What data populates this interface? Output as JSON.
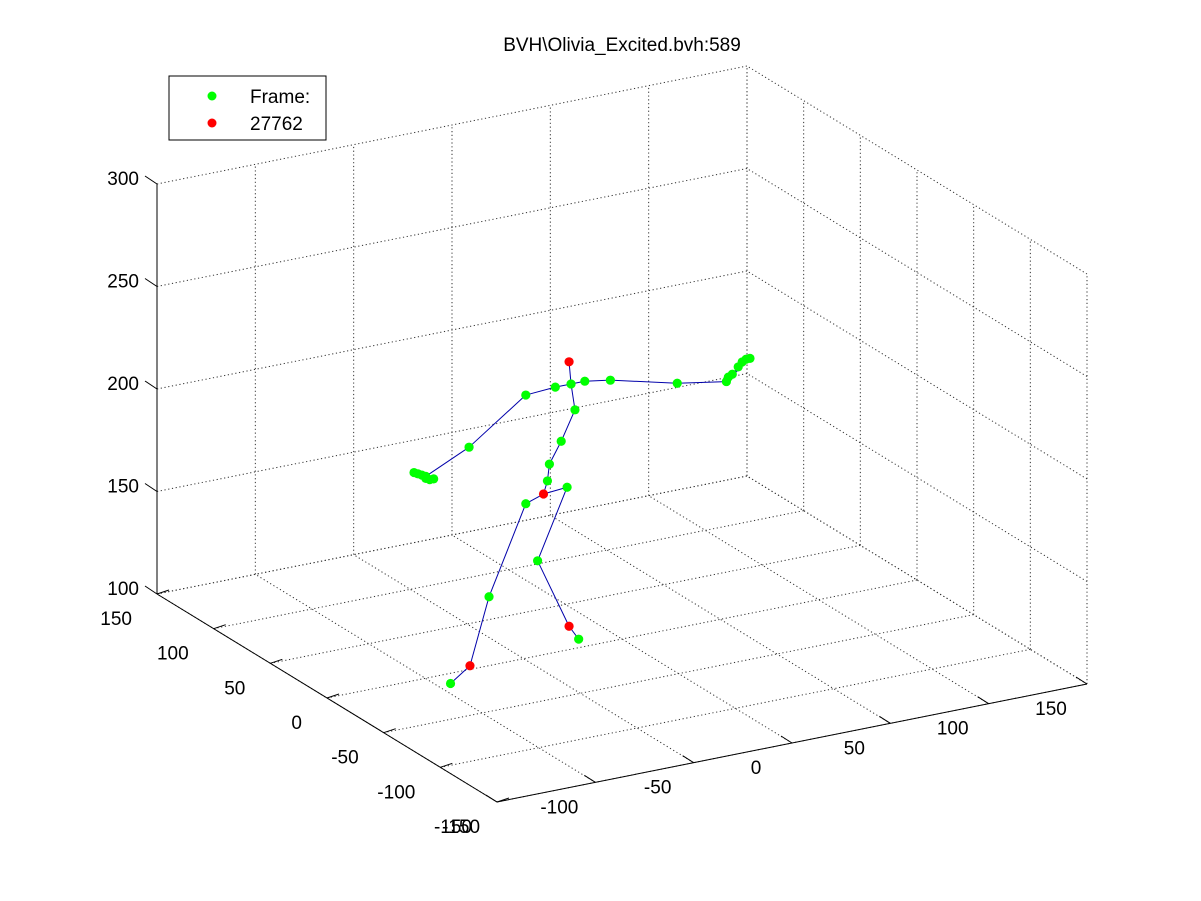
{
  "chart_data": {
    "type": "scatter",
    "title": "BVH\\Olivia_Excited.bvh:589",
    "xlabel": "",
    "ylabel": "",
    "zlabel": "",
    "grid": true,
    "legend_position": "top-left",
    "x_ticks": [
      "-150",
      "-100",
      "-50",
      "0",
      "50",
      "100",
      "150"
    ],
    "y_ticks": [
      "-150",
      "-100",
      "-50",
      "0",
      "50",
      "100",
      "150"
    ],
    "z_ticks": [
      "100",
      "150",
      "200",
      "250",
      "300"
    ],
    "xlim": [
      -150,
      150
    ],
    "ylim": [
      -150,
      150
    ],
    "zlim": [
      100,
      300
    ],
    "legend": [
      {
        "label": "Frame:",
        "color": "#00ff00"
      },
      {
        "label": "27762",
        "color": "#ff0000"
      }
    ],
    "colors": {
      "joint": "#00ff00",
      "highlight": "#ff0000",
      "bone": "#0000aa"
    },
    "joints": [
      {
        "id": "head_top",
        "x": -20,
        "y": 12,
        "z": 235,
        "highlight": true
      },
      {
        "id": "neck",
        "x": -19,
        "y": 12,
        "z": 224
      },
      {
        "id": "l_clav",
        "x": -27,
        "y": 12,
        "z": 224
      },
      {
        "id": "r_clav",
        "x": -12,
        "y": 12,
        "z": 224
      },
      {
        "id": "l_shoulder",
        "x": -42,
        "y": 12,
        "z": 223
      },
      {
        "id": "l_elbow",
        "x": -72,
        "y": 10,
        "z": 204
      },
      {
        "id": "l_wrist",
        "x": -94,
        "y": 10,
        "z": 194
      },
      {
        "id": "l_h1",
        "x": -100,
        "y": 10,
        "z": 197
      },
      {
        "id": "l_h2",
        "x": -98,
        "y": 10,
        "z": 196
      },
      {
        "id": "l_h3",
        "x": -96,
        "y": 10,
        "z": 195
      },
      {
        "id": "l_h4",
        "x": -94,
        "y": 10,
        "z": 193
      },
      {
        "id": "l_h5",
        "x": -92,
        "y": 10,
        "z": 192
      },
      {
        "id": "l_h6",
        "x": -90,
        "y": 10,
        "z": 192
      },
      {
        "id": "r_shoulder",
        "x": 1,
        "y": 12,
        "z": 222
      },
      {
        "id": "r_elbow",
        "x": 35,
        "y": 12,
        "z": 214
      },
      {
        "id": "r_wrist",
        "x": 60,
        "y": 12,
        "z": 210
      },
      {
        "id": "r_h1",
        "x": 68,
        "y": 12,
        "z": 218
      },
      {
        "id": "r_h2",
        "x": 70,
        "y": 12,
        "z": 219
      },
      {
        "id": "r_h3",
        "x": 72,
        "y": 12,
        "z": 219
      },
      {
        "id": "r_h4",
        "x": 66,
        "y": 12,
        "z": 216
      },
      {
        "id": "r_h5",
        "x": 63,
        "y": 12,
        "z": 213
      },
      {
        "id": "r_h6",
        "x": 61,
        "y": 12,
        "z": 212
      },
      {
        "id": "spine3",
        "x": -17,
        "y": 12,
        "z": 211
      },
      {
        "id": "spine2",
        "x": -24,
        "y": 12,
        "z": 197
      },
      {
        "id": "spine1",
        "x": -30,
        "y": 12,
        "z": 187
      },
      {
        "id": "spine0",
        "x": -31,
        "y": 12,
        "z": 179
      },
      {
        "id": "hips",
        "x": -33,
        "y": 12,
        "z": 173,
        "highlight": true
      },
      {
        "id": "l_hip",
        "x": -42,
        "y": 12,
        "z": 170
      },
      {
        "id": "r_hip",
        "x": -21,
        "y": 12,
        "z": 174
      },
      {
        "id": "l_knee",
        "x": -63,
        "y": 8,
        "z": 130
      },
      {
        "id": "l_ankle",
        "x": -75,
        "y": 4,
        "z": 100,
        "highlight": true
      },
      {
        "id": "l_toe",
        "x": -82,
        "y": 9,
        "z": 91
      },
      {
        "id": "r_knee",
        "x": -36,
        "y": 12,
        "z": 141
      },
      {
        "id": "r_ankle",
        "x": -20,
        "y": 12,
        "z": 106,
        "highlight": true
      },
      {
        "id": "r_toe",
        "x": -18,
        "y": 7,
        "z": 101
      }
    ],
    "bones": [
      [
        "head_top",
        "neck"
      ],
      [
        "neck",
        "l_clav"
      ],
      [
        "neck",
        "r_clav"
      ],
      [
        "l_clav",
        "l_shoulder"
      ],
      [
        "l_shoulder",
        "l_elbow"
      ],
      [
        "l_elbow",
        "l_wrist"
      ],
      [
        "l_wrist",
        "l_h1"
      ],
      [
        "l_wrist",
        "l_h2"
      ],
      [
        "l_wrist",
        "l_h3"
      ],
      [
        "l_wrist",
        "l_h4"
      ],
      [
        "l_wrist",
        "l_h5"
      ],
      [
        "l_wrist",
        "l_h6"
      ],
      [
        "r_clav",
        "r_shoulder"
      ],
      [
        "r_shoulder",
        "r_elbow"
      ],
      [
        "r_elbow",
        "r_wrist"
      ],
      [
        "r_wrist",
        "r_h1"
      ],
      [
        "r_wrist",
        "r_h2"
      ],
      [
        "r_wrist",
        "r_h3"
      ],
      [
        "r_wrist",
        "r_h4"
      ],
      [
        "r_wrist",
        "r_h5"
      ],
      [
        "r_wrist",
        "r_h6"
      ],
      [
        "neck",
        "spine3"
      ],
      [
        "spine3",
        "spine2"
      ],
      [
        "spine2",
        "spine1"
      ],
      [
        "spine1",
        "spine0"
      ],
      [
        "spine0",
        "hips"
      ],
      [
        "hips",
        "l_hip"
      ],
      [
        "hips",
        "r_hip"
      ],
      [
        "l_hip",
        "l_knee"
      ],
      [
        "l_knee",
        "l_ankle"
      ],
      [
        "l_ankle",
        "l_toe"
      ],
      [
        "r_hip",
        "r_knee"
      ],
      [
        "r_knee",
        "r_ankle"
      ],
      [
        "r_ankle",
        "r_toe"
      ]
    ]
  }
}
